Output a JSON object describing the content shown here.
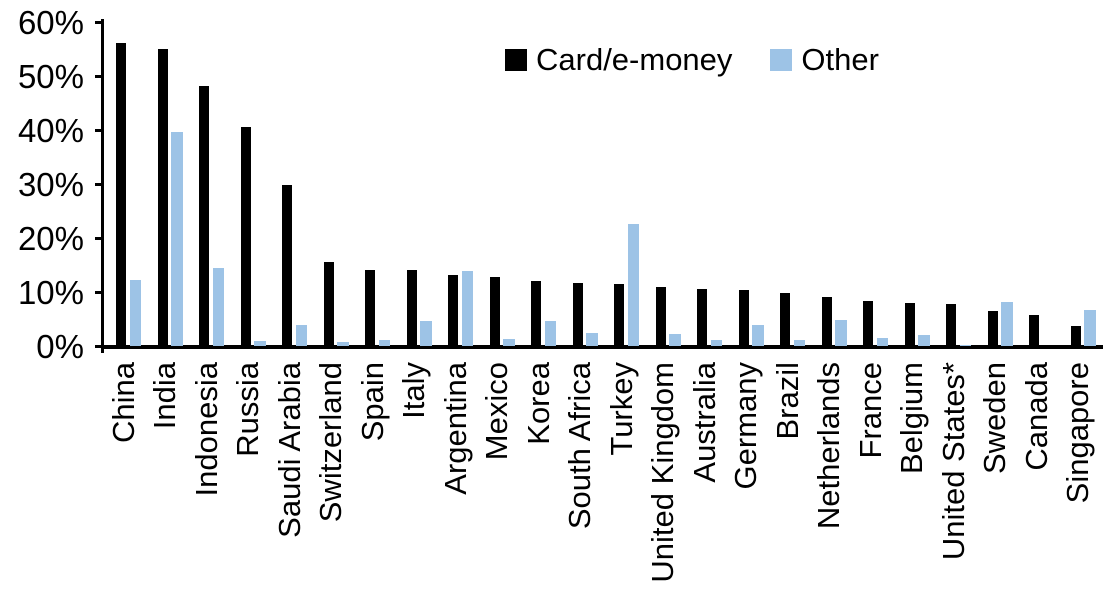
{
  "chart_data": {
    "type": "bar",
    "title": "",
    "xlabel": "",
    "ylabel": "",
    "ylim": [
      0,
      60
    ],
    "grid": false,
    "legend_position": "top-center",
    "yticks": [
      "0%",
      "10%",
      "20%",
      "30%",
      "40%",
      "50%",
      "60%"
    ],
    "ytick_values": [
      0,
      10,
      20,
      30,
      40,
      50,
      60
    ],
    "categories": [
      "China",
      "India",
      "Indonesia",
      "Russia",
      "Saudi Arabia",
      "Switzerland",
      "Spain",
      "Italy",
      "Argentina",
      "Mexico",
      "Korea",
      "South Africa",
      "Turkey",
      "United Kingdom",
      "Australia",
      "Germany",
      "Brazil",
      "Netherlands",
      "France",
      "Belgium",
      "United States*",
      "Sweden",
      "Canada",
      "Singapore"
    ],
    "series": [
      {
        "name": "Card/e-money",
        "color": "#000000",
        "values": [
          56.2,
          55.0,
          48.2,
          40.5,
          29.8,
          15.6,
          14.1,
          14.0,
          13.2,
          12.8,
          12.1,
          11.6,
          11.4,
          10.9,
          10.6,
          10.4,
          9.9,
          9.1,
          8.4,
          8.0,
          7.8,
          6.4,
          5.8,
          3.7
        ]
      },
      {
        "name": "Other",
        "color": "#9DC3E6",
        "values": [
          12.2,
          39.7,
          14.5,
          1.0,
          3.9,
          0.8,
          1.1,
          4.6,
          13.8,
          1.3,
          4.6,
          2.4,
          22.5,
          2.3,
          1.1,
          3.8,
          1.2,
          4.8,
          1.5,
          2.0,
          0.2,
          8.1,
          0.0,
          6.7
        ]
      }
    ]
  }
}
